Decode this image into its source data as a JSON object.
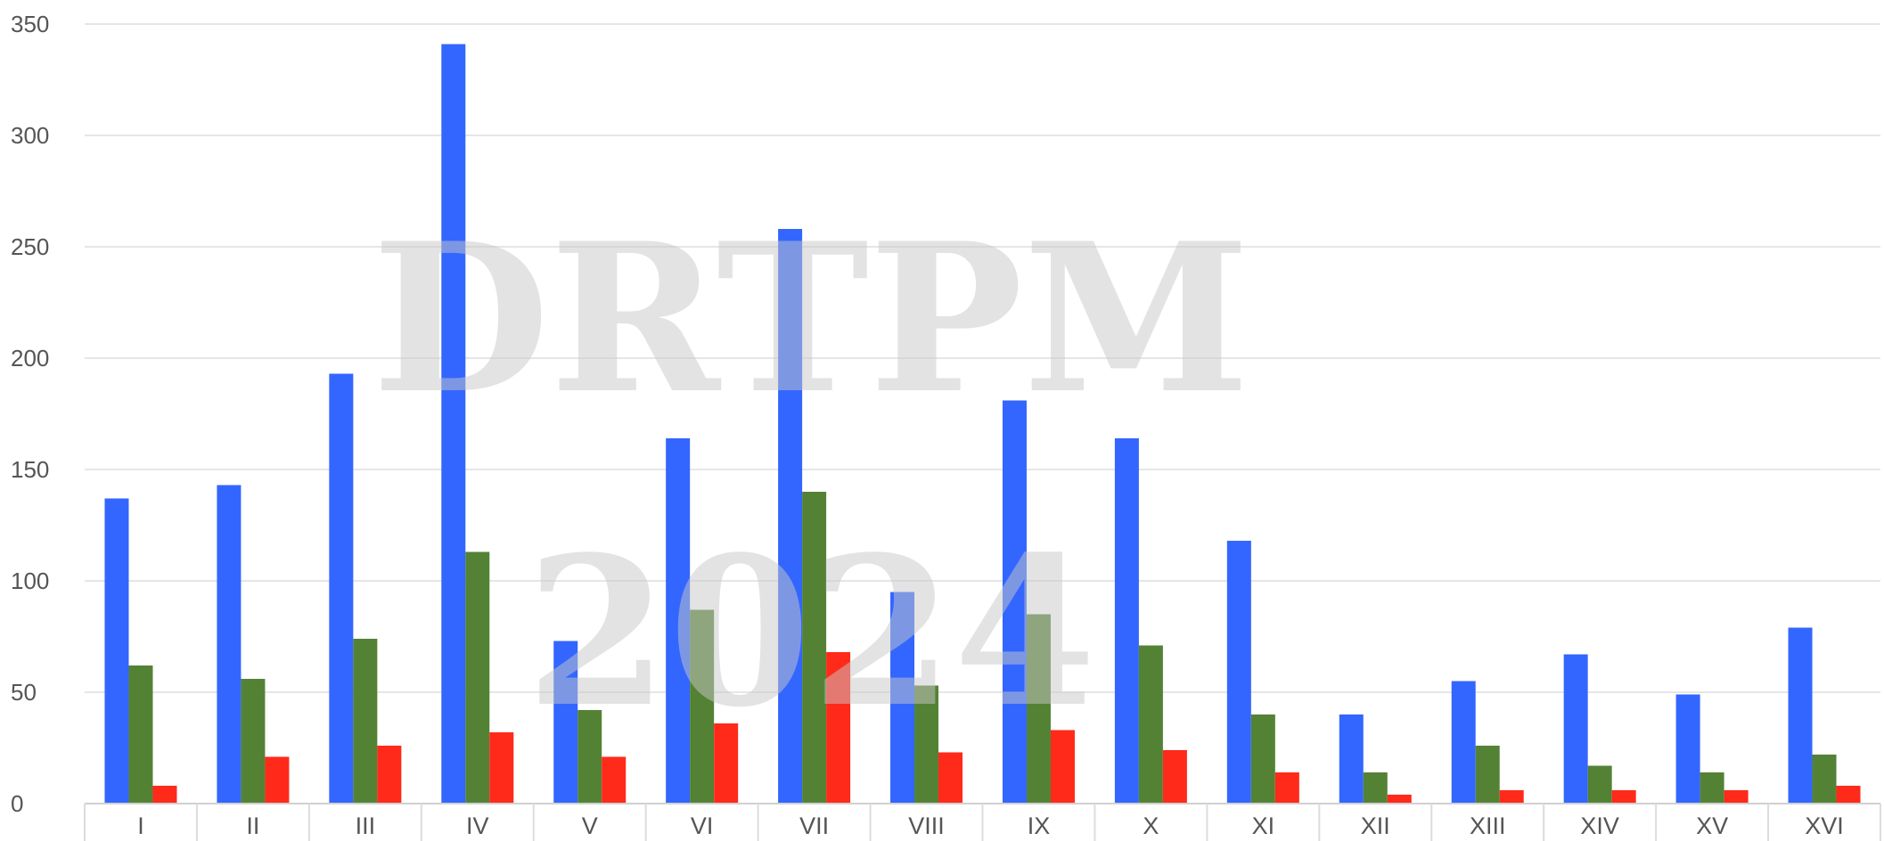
{
  "chart_data": {
    "type": "bar",
    "categories": [
      "I",
      "II",
      "III",
      "IV",
      "V",
      "VI",
      "VII",
      "VIII",
      "IX",
      "X",
      "XI",
      "XII",
      "XIII",
      "XIV",
      "XV",
      "XVI"
    ],
    "series": [
      {
        "color": "#3366ff",
        "values": [
          137,
          143,
          193,
          341,
          73,
          164,
          258,
          95,
          181,
          164,
          118,
          40,
          55,
          67,
          49,
          79
        ]
      },
      {
        "color": "#548235",
        "values": [
          62,
          56,
          74,
          113,
          42,
          87,
          140,
          53,
          85,
          71,
          40,
          14,
          26,
          17,
          14,
          22
        ]
      },
      {
        "color": "#ff2a1a",
        "values": [
          8,
          21,
          26,
          32,
          21,
          36,
          68,
          23,
          33,
          24,
          14,
          4,
          6,
          6,
          6,
          8
        ]
      }
    ],
    "y_ticks": [
      "0",
      "50",
      "100",
      "150",
      "200",
      "250",
      "300",
      "350"
    ],
    "ylim": [
      0,
      350
    ],
    "grid": true,
    "legend": "none",
    "watermark": [
      "DRTPM",
      "2024"
    ]
  }
}
